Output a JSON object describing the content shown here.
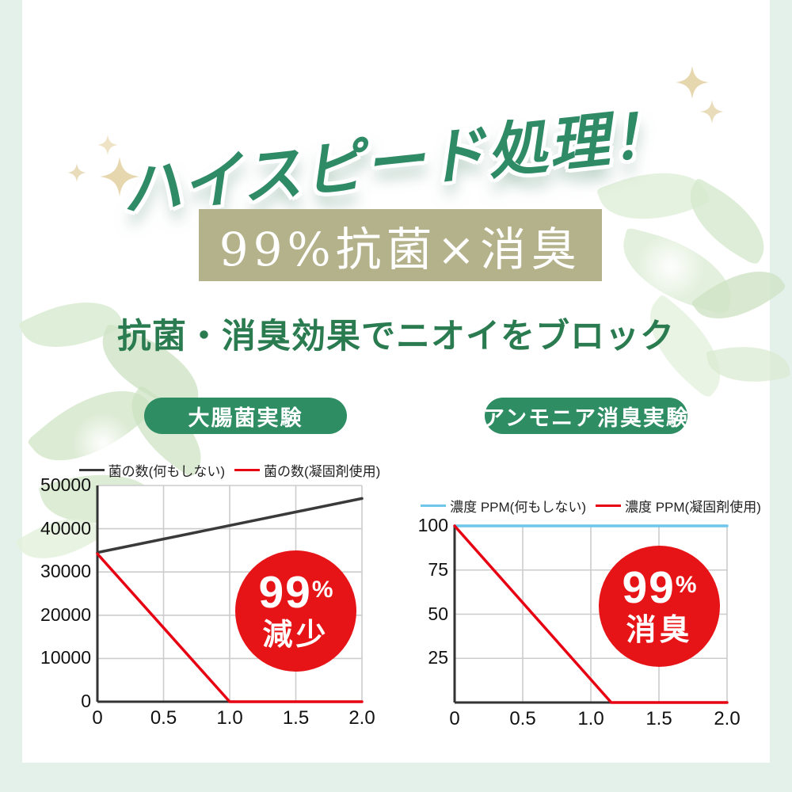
{
  "header": {
    "title": "ハイスピード処理！",
    "highlight": "99%抗菌×消臭",
    "subtitle": "抗菌・消臭効果でニオイをブロック"
  },
  "badges": {
    "left": "大腸菌実験",
    "right": "アンモニア消臭実験"
  },
  "stat_circles": {
    "left": {
      "value": "99",
      "unit": "%",
      "label": "減少"
    },
    "right": {
      "value": "99",
      "unit": "%",
      "label": "消臭"
    }
  },
  "colors": {
    "title_green": "#2f8a66",
    "subtitle_green": "#2b7b51",
    "badge_green": "#2e8d63",
    "highlight_beige": "#b4b28b",
    "stat_red": "#e61317",
    "line_black": "#3a3a3a",
    "line_red": "#e60012",
    "line_blue": "#6ec6ea",
    "frame_mint": "#e3f1ea",
    "sparkle_beige": "#e6d7ae",
    "grid_gray": "#cccccc",
    "axis_dark": "#333333"
  },
  "chart_data": [
    {
      "type": "line",
      "title": "大腸菌実験",
      "xlabel": "",
      "ylabel": "",
      "xlim": [
        0,
        2
      ],
      "ylim": [
        0,
        50000
      ],
      "x_ticks": [
        0,
        0.5,
        1,
        1.5,
        2
      ],
      "x_tick_labels": [
        "0",
        "0.5",
        "1.0",
        "1.5",
        "2.0"
      ],
      "y_ticks": [
        0,
        10000,
        20000,
        30000,
        40000,
        50000
      ],
      "y_tick_labels": [
        "0",
        "10000",
        "20000",
        "30000",
        "40000",
        "50000"
      ],
      "grid": true,
      "legend_position": "top",
      "series": [
        {
          "name": "菌の数(何もしない)",
          "color": "#3a3a3a",
          "points": [
            [
              0,
              34500
            ],
            [
              2,
              47000
            ]
          ]
        },
        {
          "name": "菌の数(凝固剤使用)",
          "color": "#e60012",
          "points": [
            [
              0,
              34200
            ],
            [
              1.0,
              0
            ],
            [
              2.0,
              0
            ]
          ]
        }
      ],
      "annotation": "99%減少"
    },
    {
      "type": "line",
      "title": "アンモニア消臭実験",
      "xlabel": "",
      "ylabel": "",
      "xlim": [
        0,
        2
      ],
      "ylim": [
        0,
        100
      ],
      "x_ticks": [
        0,
        0.5,
        1,
        1.5,
        2
      ],
      "x_tick_labels": [
        "0",
        "0.5",
        "1.0",
        "1.5",
        "2.0"
      ],
      "y_ticks": [
        25,
        50,
        75,
        100
      ],
      "y_tick_labels": [
        "25",
        "50",
        "75",
        "100"
      ],
      "grid": true,
      "legend_position": "top",
      "series": [
        {
          "name": "濃度 PPM(何もしない)",
          "color": "#6ec6ea",
          "points": [
            [
              0,
              100
            ],
            [
              2,
              100
            ]
          ]
        },
        {
          "name": "濃度 PPM(凝固剤使用)",
          "color": "#e60012",
          "points": [
            [
              0,
              100
            ],
            [
              1.15,
              0
            ],
            [
              2,
              0
            ]
          ]
        }
      ],
      "annotation": "99%消臭"
    }
  ]
}
